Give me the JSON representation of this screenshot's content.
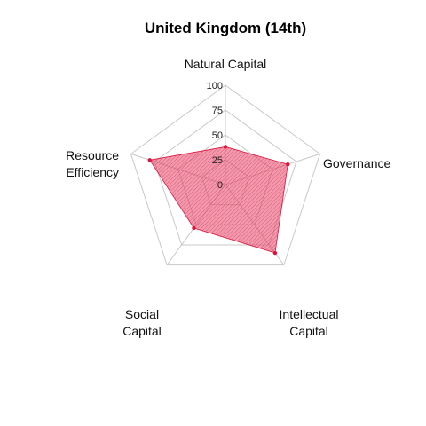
{
  "chart_data": {
    "type": "radar",
    "title": "United Kingdom (14th)",
    "axes": [
      [
        "Natural Capital"
      ],
      [
        "Governance"
      ],
      [
        "Intellectual",
        "Capital"
      ],
      [
        "Social",
        "Capital"
      ],
      [
        "Resource",
        "Efficiency"
      ]
    ],
    "axis_names": [
      "Natural Capital",
      "Governance",
      "Intellectual Capital",
      "Social Capital",
      "Resource Efficiency"
    ],
    "ticks": [
      "0",
      "25",
      "50",
      "75",
      "100"
    ],
    "range": [
      0,
      100
    ],
    "series": [
      {
        "values": [
          38,
          66,
          85,
          54,
          80
        ]
      }
    ],
    "colors": {
      "fill": "#e8476b",
      "stroke": "#dc143c",
      "grid": "#c8c8c8"
    },
    "grid": true,
    "legend": "none"
  }
}
